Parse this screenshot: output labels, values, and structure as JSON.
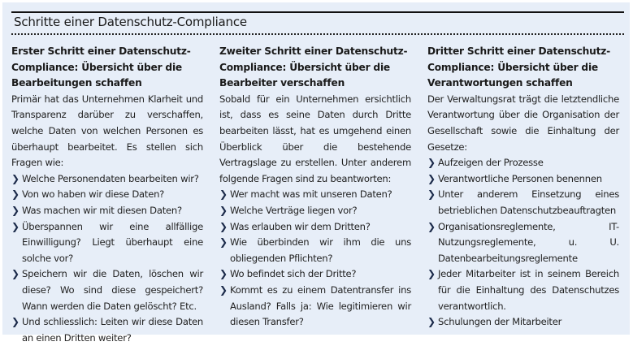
{
  "title": "Schritte einer Datenschutz-Compliance",
  "columns": [
    {
      "heading": "Erster Schritt einer Datenschutz-Compliance: Übersicht über die Bearbeitungen schaffen",
      "intro": "Primär hat das Unternehmen Klarheit und Transparenz darüber zu verschaffen, welche Daten von welchen Personen es überhaupt bearbeitet. Es stellen sich Fragen wie:",
      "items": [
        "Welche Personendaten bearbeiten wir?",
        "Von wo haben wir diese Daten?",
        "Was machen wir mit diesen Daten?",
        "Überspannen wir eine allfällige Einwilligung? Liegt überhaupt eine solche vor?",
        "Speichern wir die Daten, löschen wir diese? Wo sind diese gespeichert? Wann werden die Daten gelöscht? Etc.",
        "Und schliesslich: Leiten wir diese Daten an einen Dritten weiter?"
      ]
    },
    {
      "heading": "Zweiter Schritt einer Datenschutz-Compliance: Übersicht über die Bearbeiter verschaffen",
      "intro": "Sobald für ein Unternehmen ersichtlich ist, dass es seine Daten durch Dritte bearbeiten lässt, hat es umgehend einen Überblick über die bestehende Vertragslage zu erstellen. Unter anderem folgende Fragen sind zu beantworten:",
      "items": [
        "Wer macht was mit unseren Daten?",
        "Welche Verträge liegen vor?",
        "Was erlauben wir dem Dritten?",
        "Wie überbinden wir ihm die uns obliegenden Pflichten?",
        "Wo befindet sich der Dritte?",
        "Kommt es zu einem Datentransfer ins Ausland? Falls ja: Wie legitimieren wir diesen Transfer?"
      ]
    },
    {
      "heading": "Dritter Schritt einer Datenschutz-Compliance: Übersicht über die Verantwortungen schaffen",
      "intro": "Der Verwaltungsrat trägt die letztendliche Verantwortung über die Organisation der Gesellschaft sowie die Einhaltung der Gesetze:",
      "items": [
        "Aufzeigen der Prozesse",
        "Verantwortliche Personen benennen",
        "Unter anderem Einsetzung eines betrieblichen Datenschutzbeauftragten",
        "Organisationsreglemente, IT-Nutzungsreglemente, u. U. Datenbearbeitungsreglemente",
        "Jeder Mitarbeiter ist in seinem Bereich für die Einhaltung des Datenschutzes verantwortlich.",
        "Schulungen der Mitarbeiter"
      ]
    }
  ],
  "bullet_icon": "chevron-right-icon"
}
